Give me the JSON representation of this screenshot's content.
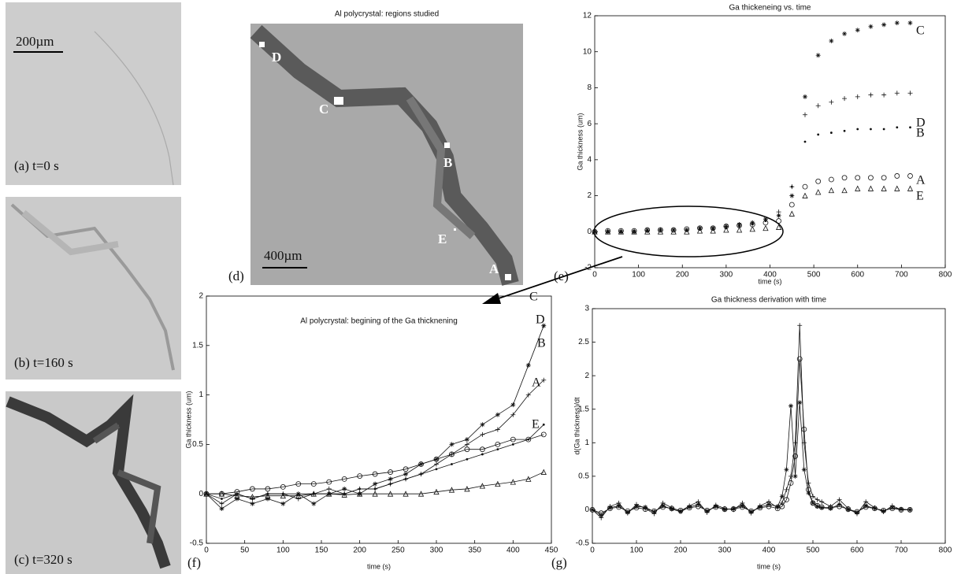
{
  "images": [
    {
      "scale": "200µm",
      "label": "(a) t=0 s"
    },
    {
      "label": "(b) t=160 s"
    },
    {
      "label": "(c) t=320 s"
    },
    {
      "title": "Al polycrystal: regions studied",
      "scale": "400µm",
      "panel_label": "(d)",
      "points": [
        "D",
        "C",
        "B",
        "E",
        "A"
      ]
    }
  ],
  "chart_data": [
    {
      "type": "scatter",
      "title": "Ga thickeneing vs. time",
      "xlabel": "time (s)",
      "ylabel": "Ga thickness (um)",
      "panel_label": "(e)",
      "x": [
        0,
        30,
        60,
        90,
        120,
        150,
        180,
        210,
        240,
        270,
        300,
        330,
        360,
        390,
        420,
        450,
        480,
        510,
        540,
        570,
        600,
        630,
        660,
        690,
        720
      ],
      "series": [
        {
          "name": "C",
          "marker": "*",
          "values": [
            0,
            0,
            0,
            0,
            0.1,
            0.1,
            0.1,
            0.1,
            0.2,
            0.2,
            0.3,
            0.4,
            0.5,
            0.7,
            0.9,
            2.0,
            7.5,
            9.8,
            10.6,
            11.0,
            11.2,
            11.4,
            11.5,
            11.6,
            11.6
          ]
        },
        {
          "name": "D",
          "marker": "+",
          "values": [
            0,
            0,
            0,
            0,
            0.05,
            0.1,
            0.1,
            0.1,
            0.2,
            0.2,
            0.3,
            0.4,
            0.5,
            0.7,
            1.1,
            2.5,
            6.5,
            7.0,
            7.2,
            7.4,
            7.5,
            7.6,
            7.6,
            7.7,
            7.7
          ]
        },
        {
          "name": "B",
          "marker": ".",
          "values": [
            0,
            0,
            0,
            0,
            0.05,
            0.1,
            0.1,
            0.1,
            0.15,
            0.2,
            0.2,
            0.3,
            0.4,
            0.6,
            0.9,
            2.5,
            5.0,
            5.4,
            5.5,
            5.6,
            5.7,
            5.7,
            5.7,
            5.8,
            5.8
          ]
        },
        {
          "name": "A",
          "marker": "o",
          "values": [
            0,
            0.05,
            0.05,
            0.05,
            0.1,
            0.1,
            0.1,
            0.15,
            0.2,
            0.2,
            0.3,
            0.35,
            0.4,
            0.5,
            0.6,
            1.5,
            2.5,
            2.8,
            2.9,
            3.0,
            3.0,
            3.0,
            3.0,
            3.1,
            3.1
          ]
        },
        {
          "name": "E",
          "marker": "^",
          "values": [
            0,
            0,
            0,
            0,
            0,
            0,
            0,
            0,
            0.05,
            0.05,
            0.1,
            0.1,
            0.15,
            0.2,
            0.25,
            1.0,
            2.0,
            2.2,
            2.3,
            2.3,
            2.4,
            2.4,
            2.4,
            2.4,
            2.4
          ]
        }
      ],
      "xlim": [
        0,
        800
      ],
      "xticks": [
        0,
        100,
        200,
        300,
        400,
        500,
        600,
        700,
        800
      ],
      "ylim": [
        -2,
        12
      ],
      "yticks": [
        -2,
        0,
        2,
        4,
        6,
        8,
        10,
        12
      ]
    },
    {
      "type": "line",
      "title": "Al polycrystal: begining of the Ga thicknening",
      "xlabel": "time (s)",
      "ylabel": "Ga thickness (um)",
      "panel_label": "(f)",
      "x": [
        0,
        20,
        40,
        60,
        80,
        100,
        120,
        140,
        160,
        180,
        200,
        220,
        240,
        260,
        280,
        300,
        320,
        340,
        360,
        380,
        400,
        420,
        440
      ],
      "series": [
        {
          "name": "C",
          "marker": "*",
          "values": [
            0,
            -0.15,
            -0.05,
            -0.1,
            -0.05,
            -0.1,
            0,
            -0.1,
            0,
            0.05,
            0,
            0.1,
            0.15,
            0.2,
            0.3,
            0.35,
            0.5,
            0.55,
            0.7,
            0.8,
            0.9,
            1.3,
            1.7
          ]
        },
        {
          "name": "D",
          "marker": "+",
          "values": [
            0,
            -0.1,
            0,
            -0.05,
            0,
            0,
            -0.05,
            0,
            0.05,
            0,
            0.05,
            0.05,
            0.1,
            0.15,
            0.2,
            0.3,
            0.4,
            0.5,
            0.6,
            0.65,
            0.8,
            1.0,
            1.15
          ]
        },
        {
          "name": "B",
          "marker": ".",
          "values": [
            0,
            -0.05,
            0,
            -0.05,
            0,
            0,
            0,
            0,
            0,
            0,
            0.05,
            0.05,
            0.1,
            0.15,
            0.2,
            0.25,
            0.3,
            0.35,
            0.4,
            0.45,
            0.5,
            0.55,
            0.7
          ]
        },
        {
          "name": "A",
          "marker": "o",
          "values": [
            0,
            0,
            0.02,
            0.05,
            0.05,
            0.07,
            0.1,
            0.1,
            0.12,
            0.15,
            0.18,
            0.2,
            0.22,
            0.25,
            0.3,
            0.35,
            0.4,
            0.45,
            0.45,
            0.5,
            0.55,
            0.55,
            0.6
          ]
        },
        {
          "name": "E",
          "marker": "^",
          "values": [
            0,
            0,
            -0.02,
            -0.03,
            -0.02,
            -0.02,
            -0.02,
            0,
            0,
            -0.01,
            0,
            0,
            0,
            0,
            0,
            0.02,
            0.04,
            0.05,
            0.08,
            0.1,
            0.12,
            0.15,
            0.22
          ]
        }
      ],
      "xlim": [
        0,
        450
      ],
      "xticks": [
        0,
        50,
        100,
        150,
        200,
        250,
        300,
        350,
        400,
        450
      ],
      "ylim": [
        -0.5,
        2
      ],
      "yticks": [
        -0.5,
        0,
        0.5,
        1,
        1.5,
        2
      ]
    },
    {
      "type": "line",
      "title": "Ga thickness derivation with time",
      "xlabel": "time (s)",
      "ylabel": "d(Ga thickness)/dt",
      "panel_label": "(g)",
      "x": [
        0,
        20,
        40,
        60,
        80,
        100,
        120,
        140,
        160,
        180,
        200,
        220,
        240,
        260,
        280,
        300,
        320,
        340,
        360,
        380,
        400,
        420,
        430,
        440,
        450,
        460,
        470,
        480,
        490,
        500,
        510,
        520,
        540,
        560,
        580,
        600,
        620,
        640,
        660,
        680,
        700,
        720
      ],
      "series": [
        {
          "marker": "+",
          "values": [
            0,
            -0.12,
            0.05,
            0.1,
            -0.05,
            0.08,
            0.02,
            -0.06,
            0.1,
            0.03,
            -0.02,
            0.06,
            0.12,
            -0.04,
            0.07,
            0.02,
            0,
            0.1,
            -0.05,
            0.06,
            0.12,
            0.03,
            0.1,
            0.3,
            0.5,
            1.0,
            2.75,
            1.0,
            0.4,
            0.2,
            0.15,
            0.12,
            0.05,
            0.15,
            0.02,
            -0.06,
            0.12,
            0.03,
            -0.03,
            0.06,
            0,
            0
          ]
        },
        {
          "marker": "*",
          "values": [
            0,
            -0.08,
            0.03,
            0.06,
            -0.04,
            0.05,
            0.04,
            -0.03,
            0.06,
            0.01,
            -0.03,
            0.04,
            0.08,
            -0.02,
            0.05,
            0,
            0.02,
            0.06,
            -0.03,
            0.04,
            0.08,
            0.05,
            0.2,
            0.6,
            1.55,
            0.5,
            1.6,
            0.6,
            0.25,
            0.1,
            0.05,
            0.03,
            0.02,
            0.08,
            0,
            -0.04,
            0.06,
            0.02,
            -0.02,
            0.03,
            0.01,
            0
          ]
        },
        {
          "marker": "o",
          "values": [
            0,
            -0.05,
            0.02,
            0.04,
            -0.02,
            0.03,
            0.01,
            -0.02,
            0.04,
            0.02,
            -0.01,
            0.03,
            0.05,
            -0.01,
            0.04,
            0.01,
            0.01,
            0.04,
            -0.02,
            0.03,
            0.05,
            0.02,
            0.05,
            0.15,
            0.4,
            0.8,
            2.25,
            1.2,
            0.3,
            0.1,
            0.06,
            0.04,
            0.03,
            0.05,
            0.01,
            -0.03,
            0.04,
            0.02,
            -0.01,
            0.02,
            0,
            0
          ]
        }
      ],
      "xlim": [
        0,
        800
      ],
      "xticks": [
        0,
        100,
        200,
        300,
        400,
        500,
        600,
        700,
        800
      ],
      "ylim": [
        -0.5,
        3
      ],
      "yticks": [
        -0.5,
        0,
        0.5,
        1,
        1.5,
        2,
        2.5,
        3
      ]
    }
  ]
}
